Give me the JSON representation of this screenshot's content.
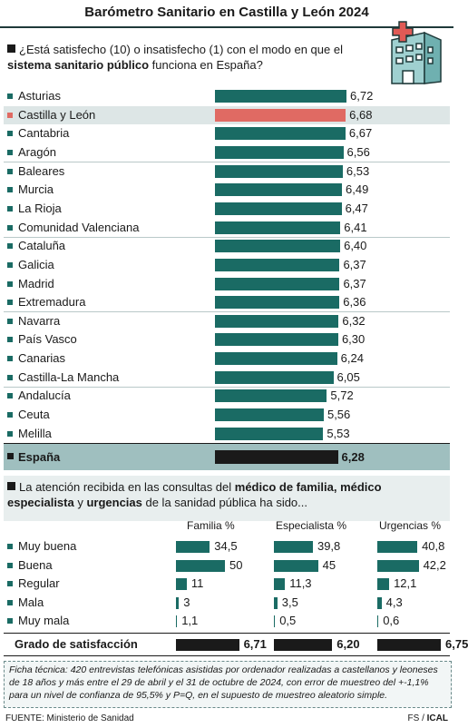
{
  "title": "Barómetro Sanitario en Castilla y León 2024",
  "question1": {
    "before": "¿Está satisfecho (10) o insatisfecho (1) con el modo en que el ",
    "bold": "sistema sanitario público",
    "after": " funciona en España?"
  },
  "question2": {
    "p1": "La atención recibida en las consultas del ",
    "b1": "médico de familia, médico especialista",
    "p2": " y ",
    "b2": "urgencias",
    "p3": " de la sanidad pública ha sido..."
  },
  "colors": {
    "teal": "#1a6b64",
    "highlight": "#e06a63",
    "dark": "#1a1a1a",
    "spainBg": "#9fbfbf"
  },
  "chart_data": [
    {
      "type": "bar",
      "orientation": "horizontal",
      "title": "¿Está satisfecho (10) o insatisfecho (1) con el modo en que el sistema sanitario público funciona en España?",
      "categories": [
        "Asturias",
        "Castilla y León",
        "Cantabria",
        "Aragón",
        "Baleares",
        "Murcia",
        "La Rioja",
        "Comunidad Valenciana",
        "Cataluña",
        "Galicia",
        "Madrid",
        "Extremadura",
        "Navarra",
        "País Vasco",
        "Canarias",
        "Castilla-La Mancha",
        "Andalucía",
        "Ceuta",
        "Melilla",
        "España"
      ],
      "values": [
        6.72,
        6.68,
        6.67,
        6.56,
        6.53,
        6.49,
        6.47,
        6.41,
        6.4,
        6.37,
        6.37,
        6.36,
        6.32,
        6.3,
        6.24,
        6.05,
        5.72,
        5.56,
        5.53,
        6.28
      ],
      "labels": [
        "6,72",
        "6,68",
        "6,67",
        "6,56",
        "6,53",
        "6,49",
        "6,47",
        "6,41",
        "6,40",
        "6,37",
        "6,37",
        "6,36",
        "6,32",
        "6,30",
        "6,24",
        "6,05",
        "5,72",
        "5,56",
        "5,53",
        "6,28"
      ],
      "highlight": "Castilla y León",
      "total": "España"
    },
    {
      "type": "bar",
      "orientation": "horizontal",
      "title": "La atención recibida en las consultas del médico de familia, médico especialista y urgencias de la sanidad pública ha sido...",
      "categories": [
        "Muy buena",
        "Buena",
        "Regular",
        "Mala",
        "Muy mala"
      ],
      "series": [
        {
          "name": "Familia %",
          "values": [
            34.5,
            50,
            11,
            3,
            1.1
          ],
          "labels": [
            "34,5",
            "50",
            "11",
            "3",
            "1,1"
          ]
        },
        {
          "name": "Especialista %",
          "values": [
            39.8,
            45,
            11.3,
            3.5,
            0.5
          ],
          "labels": [
            "39,8",
            "45",
            "11,3",
            "3,5",
            "0,5"
          ]
        },
        {
          "name": "Urgencias %",
          "values": [
            40.8,
            42.2,
            12.1,
            4.3,
            0.6
          ],
          "labels": [
            "40,8",
            "42,2",
            "12,1",
            "4,3",
            "0,6"
          ]
        }
      ],
      "satisfaction": {
        "label": "Grado de satisfacción",
        "values": [
          6.71,
          6.2,
          6.75
        ],
        "labels": [
          "6,71",
          "6,20",
          "6,75"
        ]
      }
    }
  ],
  "ficha": "Ficha técnica: 420 entrevistas telefónicas asistidas por ordenador realizadas a castellanos y leoneses de 18 años y más entre el 29 de abril y el 31 de octubre de 2024, con error de muestreo del +-1,1% para un nivel de confianza de 95,5% y P=Q, en el supuesto de muestreo aleatorio simple.",
  "fuente": "FUENTE: Ministerio de Sanidad",
  "credit": {
    "fs": "FS / ",
    "ical": "ICAL"
  }
}
